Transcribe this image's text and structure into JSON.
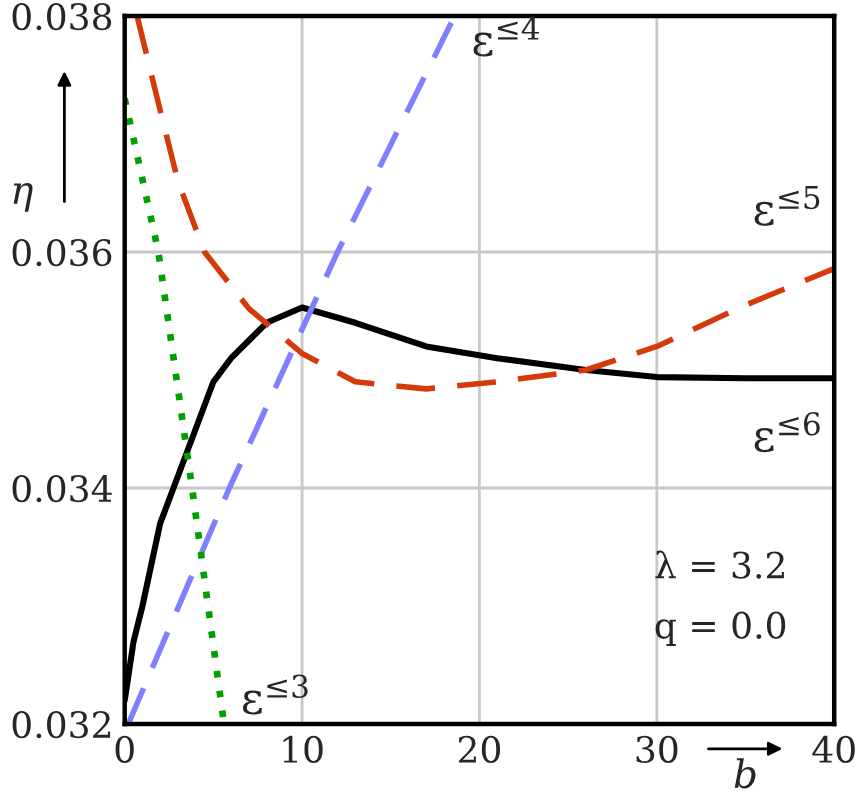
{
  "chart_data": {
    "type": "line",
    "xlabel": "b",
    "ylabel": "η",
    "xlim": [
      0,
      40
    ],
    "ylim": [
      0.032,
      0.038
    ],
    "xticks": [
      0,
      10,
      20,
      30,
      40
    ],
    "yticks": [
      0.032,
      0.034,
      0.036,
      0.038
    ],
    "grid": true,
    "series": [
      {
        "name": "ε$^{≤6}$",
        "color": "#000000",
        "line_style": "solid",
        "x": [
          0,
          0.5,
          1,
          2,
          3,
          4,
          5,
          6,
          7,
          8,
          10,
          13,
          17,
          21,
          26,
          30,
          35,
          40
        ],
        "values": [
          0.0322,
          0.0327,
          0.033,
          0.0337,
          0.0341,
          0.0345,
          0.0349,
          0.0351,
          0.03525,
          0.0354,
          0.03553,
          0.0354,
          0.0352,
          0.0351,
          0.035,
          0.03494,
          0.03493,
          0.03493
        ]
      },
      {
        "name": "ε$^{≤5}$",
        "color": "#d43a0a",
        "line_style": "dashed",
        "x": [
          0.7,
          2,
          3,
          4.5,
          7,
          10,
          13,
          17,
          21,
          26,
          30,
          35,
          40
        ],
        "values": [
          0.038,
          0.0372,
          0.0366,
          0.036,
          0.03552,
          0.03514,
          0.0349,
          0.03484,
          0.0349,
          0.035,
          0.0352,
          0.03555,
          0.03586
        ]
      },
      {
        "name": "ε$^{≤4}$",
        "color": "#7f7fff",
        "line_style": "dashed",
        "x": [
          0.2,
          5.9,
          12,
          18.6
        ],
        "values": [
          0.032,
          0.034,
          0.036,
          0.038
        ]
      },
      {
        "name": "ε$^{≤3}$",
        "color": "#00a000",
        "line_style": "dotted",
        "x": [
          0,
          1.9,
          3.8,
          5.6
        ],
        "values": [
          0.0373,
          0.036,
          0.034,
          0.032
        ]
      }
    ],
    "annotations": [
      "λ = 3.2",
      "q = 0.0"
    ]
  }
}
